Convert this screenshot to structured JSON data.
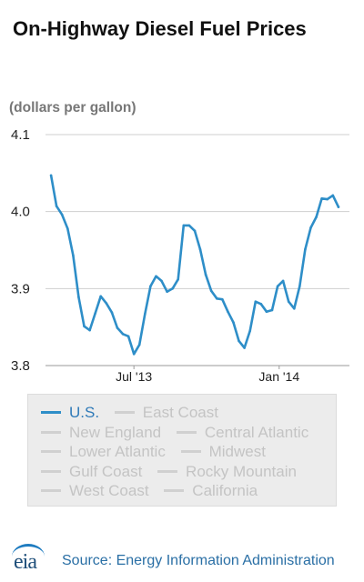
{
  "chart_data": {
    "type": "line",
    "title": "On-Highway Diesel Fuel Prices",
    "ylabel": "(dollars per gallon)",
    "xlabel": "",
    "ylim": [
      3.8,
      4.1
    ],
    "y_ticks": [
      "4.1",
      "4.0",
      "3.9",
      "3.8"
    ],
    "x_range": [
      "2013-03-11",
      "2014-03-31"
    ],
    "x_ticks": [
      {
        "label": "Jul '13",
        "date": "2013-07-01"
      },
      {
        "label": "Jan '14",
        "date": "2014-01-01"
      }
    ],
    "grid": "horizontal",
    "series": [
      {
        "name": "U.S.",
        "color": "#2e8ec8",
        "points": [
          [
            "2013-03-18",
            4.047
          ],
          [
            "2013-03-25",
            4.007
          ],
          [
            "2013-04-01",
            3.996
          ],
          [
            "2013-04-08",
            3.978
          ],
          [
            "2013-04-15",
            3.943
          ],
          [
            "2013-04-22",
            3.889
          ],
          [
            "2013-04-29",
            3.851
          ],
          [
            "2013-05-06",
            3.846
          ],
          [
            "2013-05-13",
            3.868
          ],
          [
            "2013-05-20",
            3.89
          ],
          [
            "2013-05-27",
            3.881
          ],
          [
            "2013-06-03",
            3.869
          ],
          [
            "2013-06-10",
            3.849
          ],
          [
            "2013-06-17",
            3.841
          ],
          [
            "2013-06-24",
            3.838
          ],
          [
            "2013-07-01",
            3.815
          ],
          [
            "2013-07-08",
            3.827
          ],
          [
            "2013-07-15",
            3.867
          ],
          [
            "2013-07-22",
            3.903
          ],
          [
            "2013-07-29",
            3.916
          ],
          [
            "2013-08-05",
            3.91
          ],
          [
            "2013-08-12",
            3.896
          ],
          [
            "2013-08-19",
            3.9
          ],
          [
            "2013-08-26",
            3.912
          ],
          [
            "2013-09-02",
            3.982
          ],
          [
            "2013-09-09",
            3.982
          ],
          [
            "2013-09-16",
            3.975
          ],
          [
            "2013-09-23",
            3.951
          ],
          [
            "2013-09-30",
            3.918
          ],
          [
            "2013-10-07",
            3.897
          ],
          [
            "2013-10-14",
            3.887
          ],
          [
            "2013-10-21",
            3.886
          ],
          [
            "2013-10-28",
            3.87
          ],
          [
            "2013-11-04",
            3.856
          ],
          [
            "2013-11-11",
            3.832
          ],
          [
            "2013-11-18",
            3.823
          ],
          [
            "2013-11-25",
            3.845
          ],
          [
            "2013-12-02",
            3.883
          ],
          [
            "2013-12-09",
            3.88
          ],
          [
            "2013-12-16",
            3.87
          ],
          [
            "2013-12-23",
            3.872
          ],
          [
            "2013-12-30",
            3.903
          ],
          [
            "2014-01-06",
            3.91
          ],
          [
            "2014-01-13",
            3.883
          ],
          [
            "2014-01-20",
            3.874
          ],
          [
            "2014-01-27",
            3.903
          ],
          [
            "2014-02-03",
            3.951
          ],
          [
            "2014-02-10",
            3.979
          ],
          [
            "2014-02-17",
            3.993
          ],
          [
            "2014-02-24",
            4.017
          ],
          [
            "2014-03-03",
            4.016
          ],
          [
            "2014-03-10",
            4.021
          ],
          [
            "2014-03-17",
            4.006
          ]
        ]
      }
    ]
  },
  "legend": {
    "active_color": "#2e8ec8",
    "inactive_color": "#c4c4c4",
    "items": [
      "U.S.",
      "East Coast",
      "New England",
      "Central Atlantic",
      "Lower Atlantic",
      "Midwest",
      "Gulf Coast",
      "Rocky Mountain",
      "West Coast",
      "California"
    ]
  },
  "footer": {
    "logo_text": "eia",
    "source": "Source: Energy Information Administration"
  }
}
